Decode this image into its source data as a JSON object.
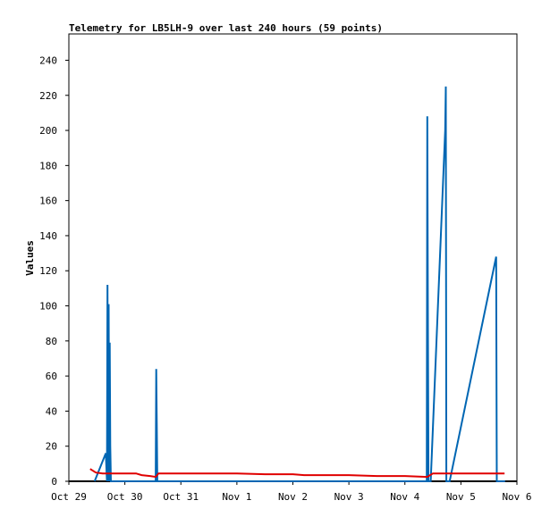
{
  "chart_data": {
    "type": "line",
    "title": "Telemetry for LB5LH-9 over last 240 hours (59 points)",
    "ylabel": "Values",
    "xlabel": "",
    "ylim": [
      0,
      255
    ],
    "xlim": [
      0,
      8
    ],
    "yticks": [
      0,
      20,
      40,
      60,
      80,
      100,
      120,
      140,
      160,
      180,
      200,
      220,
      240
    ],
    "xticks": [
      {
        "value": 0,
        "label": "Oct 29"
      },
      {
        "value": 1,
        "label": "Oct 30"
      },
      {
        "value": 2,
        "label": "Oct 31"
      },
      {
        "value": 3,
        "label": "Nov 1"
      },
      {
        "value": 4,
        "label": "Nov 2"
      },
      {
        "value": 5,
        "label": "Nov 3"
      },
      {
        "value": 6,
        "label": "Nov 4"
      },
      {
        "value": 7,
        "label": "Nov 5"
      },
      {
        "value": 8,
        "label": "Nov 6"
      }
    ],
    "grid": false,
    "legend": "none",
    "series": [
      {
        "color": "#0066b3",
        "x": [
          0.46,
          0.66,
          0.68,
          0.69,
          0.7,
          0.71,
          0.72,
          0.73,
          0.74,
          0.75,
          0.76,
          1.55,
          1.56,
          1.57,
          1.58,
          6.39,
          6.4,
          6.41,
          6.42,
          6.43,
          6.46,
          6.72,
          6.73,
          6.74,
          6.75,
          6.76,
          6.8,
          7.63,
          7.64,
          7.65,
          7.66,
          7.67,
          7.79
        ],
        "y": [
          0,
          16,
          0,
          112,
          0,
          101,
          0,
          79,
          20,
          0,
          0,
          0,
          64,
          33,
          0,
          0,
          208,
          104,
          0,
          0,
          0,
          200,
          225,
          0,
          0,
          0,
          0,
          128,
          0,
          0,
          0,
          0,
          0
        ]
      },
      {
        "color": "#e00000",
        "x": [
          0.38,
          0.48,
          0.6,
          0.8,
          1.0,
          1.2,
          1.3,
          1.45,
          1.55,
          1.6,
          2.0,
          2.5,
          3.0,
          3.5,
          4.0,
          4.2,
          4.5,
          5.0,
          5.5,
          6.0,
          6.4,
          6.5,
          7.0,
          7.5,
          7.7,
          7.78
        ],
        "y": [
          7,
          5,
          4.5,
          4.5,
          4.5,
          4.5,
          3.5,
          3,
          2.5,
          4.5,
          4.5,
          4.5,
          4.5,
          4,
          4,
          3.5,
          3.5,
          3.5,
          3,
          3,
          2.5,
          4.5,
          4.5,
          4.5,
          4.5,
          4.5
        ]
      }
    ]
  }
}
